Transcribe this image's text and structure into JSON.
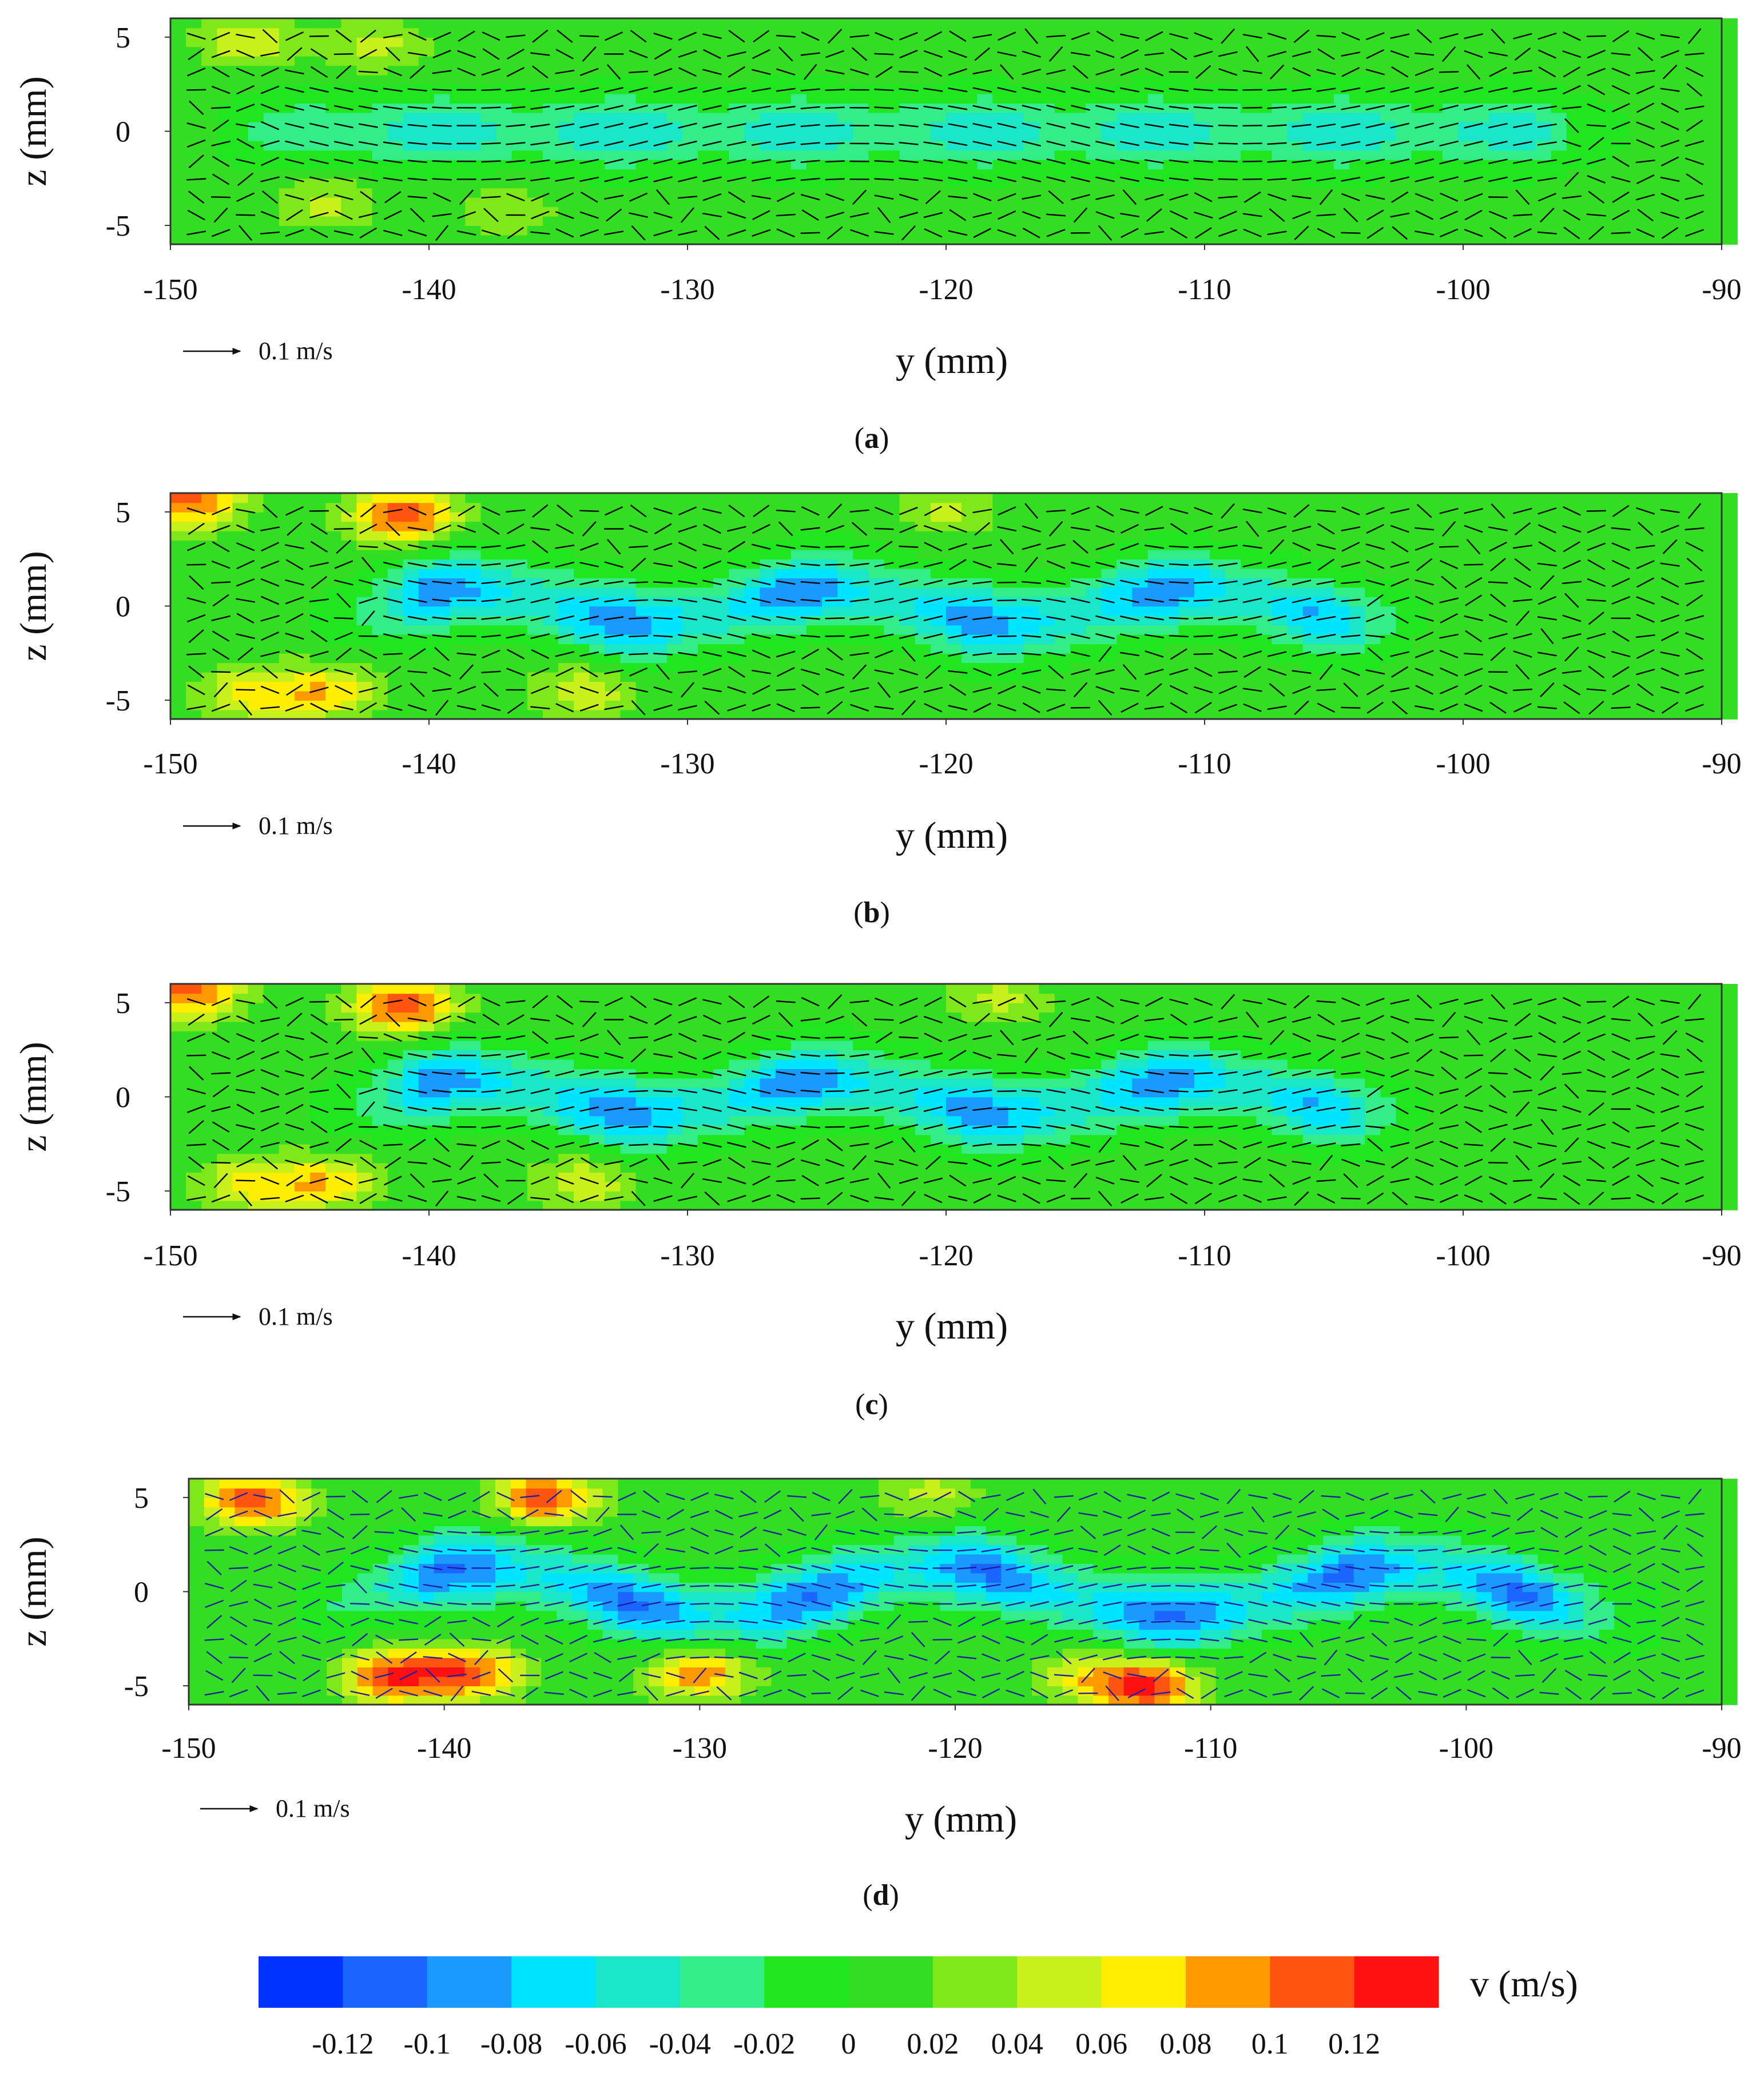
{
  "chart_data": [
    {
      "type": "heatmap",
      "panel_label": "a",
      "xlabel": "y (mm)",
      "ylabel": "z (mm)",
      "xlim": [
        -150,
        -90
      ],
      "ylim": [
        -6,
        6
      ],
      "x_ticks": [
        "-150",
        "-140",
        "-130",
        "-120",
        "-110",
        "-100",
        "-90"
      ],
      "y_ticks": [
        "5",
        "0",
        "-5"
      ],
      "reference_vector": "0.1 m/s",
      "vector_color": "#000000",
      "jet": {
        "core_v": -0.065,
        "y_range": [
          -146,
          -96
        ],
        "amplitude_mm": 0,
        "wavelength_mm": 30
      },
      "hot_spots": [
        {
          "y": -147,
          "z": 4.8,
          "v": 0.05
        },
        {
          "y": -142,
          "z": 4.5,
          "v": 0.04
        },
        {
          "y": -144,
          "z": -3.8,
          "v": 0.04
        },
        {
          "y": -137,
          "z": -4.2,
          "v": 0.03
        }
      ]
    },
    {
      "type": "heatmap",
      "panel_label": "b",
      "xlabel": "y (mm)",
      "ylabel": "z (mm)",
      "xlim": [
        -150,
        -90
      ],
      "ylim": [
        -6,
        6
      ],
      "x_ticks": [
        "-150",
        "-140",
        "-130",
        "-120",
        "-110",
        "-100",
        "-90"
      ],
      "y_ticks": [
        "5",
        "0",
        "-5"
      ],
      "reference_vector": "0.1 m/s",
      "vector_color": "#000000",
      "jet": {
        "core_v": -0.1,
        "y_range": [
          -142,
          -104
        ],
        "amplitude_mm": 0.9,
        "wavelength_mm": 14
      },
      "hot_spots": [
        {
          "y": -141,
          "z": 4.8,
          "v": 0.11
        },
        {
          "y": -149.3,
          "z": 5.6,
          "v": 0.1
        },
        {
          "y": -144,
          "z": -4.5,
          "v": 0.07
        },
        {
          "y": -147,
          "z": -4.6,
          "v": 0.06
        },
        {
          "y": -134,
          "z": -4.5,
          "v": 0.05
        },
        {
          "y": -120,
          "z": 5.2,
          "v": 0.04
        }
      ]
    },
    {
      "type": "heatmap",
      "panel_label": "c",
      "xlabel": "y (mm)",
      "ylabel": "z (mm)",
      "xlim": [
        -150,
        -90
      ],
      "ylim": [
        -6,
        6
      ],
      "x_ticks": [
        "-150",
        "-140",
        "-130",
        "-120",
        "-110",
        "-100",
        "-90"
      ],
      "y_ticks": [
        "5",
        "0",
        "-5"
      ],
      "reference_vector": "0.1 m/s",
      "vector_color": "#000000",
      "jet": {
        "core_v": -0.1,
        "y_range": [
          -142,
          -104
        ],
        "amplitude_mm": 0.9,
        "wavelength_mm": 14
      },
      "hot_spots": [
        {
          "y": -141,
          "z": 4.8,
          "v": 0.11
        },
        {
          "y": -149.3,
          "z": 5.6,
          "v": 0.1
        },
        {
          "y": -144,
          "z": -4.5,
          "v": 0.07
        },
        {
          "y": -147,
          "z": -4.6,
          "v": 0.06
        },
        {
          "y": -134,
          "z": -4.5,
          "v": 0.05
        },
        {
          "y": -118,
          "z": 5.2,
          "v": 0.04
        }
      ]
    },
    {
      "type": "heatmap",
      "panel_label": "d",
      "xlabel": "y (mm)",
      "ylabel": "z (mm)",
      "xlim": [
        -150,
        -90
      ],
      "ylim": [
        -6,
        6
      ],
      "x_ticks": [
        "-150",
        "-140",
        "-130",
        "-120",
        "-110",
        "-100",
        "-90"
      ],
      "y_ticks": [
        "5",
        "0",
        "-5"
      ],
      "reference_vector": "0.1 m/s",
      "vector_color": "#1f1f9f",
      "jet": {
        "core_v": -0.11,
        "y_range": [
          -143,
          -95
        ],
        "amplitude_mm": 1.3,
        "wavelength_mm": 18
      },
      "hot_spots": [
        {
          "y": -147.5,
          "z": 4.8,
          "v": 0.11
        },
        {
          "y": -136,
          "z": 5.0,
          "v": 0.11
        },
        {
          "y": -142,
          "z": -4.5,
          "v": 0.11
        },
        {
          "y": -139,
          "z": -4.3,
          "v": 0.1
        },
        {
          "y": -130,
          "z": -4.3,
          "v": 0.09
        },
        {
          "y": -112.5,
          "z": -5.0,
          "v": 0.12
        },
        {
          "y": -115,
          "z": -4.6,
          "v": 0.05
        },
        {
          "y": -121,
          "z": 5.2,
          "v": 0.04
        }
      ]
    }
  ],
  "colorbar": {
    "label": "v (m/s)",
    "ticks": [
      "-0.12",
      "-0.1",
      "-0.08",
      "-0.06",
      "-0.04",
      "-0.02",
      "0",
      "0.02",
      "0.04",
      "0.06",
      "0.08",
      "0.1",
      "0.12"
    ],
    "colors": [
      "#0033ff",
      "#1a66ff",
      "#1a99ff",
      "#00e5ff",
      "#1ae6c8",
      "#33ee88",
      "#1fe61f",
      "#33dd22",
      "#7ee81a",
      "#c8f01a",
      "#ffee00",
      "#ff9900",
      "#ff5511",
      "#ff1111"
    ]
  }
}
